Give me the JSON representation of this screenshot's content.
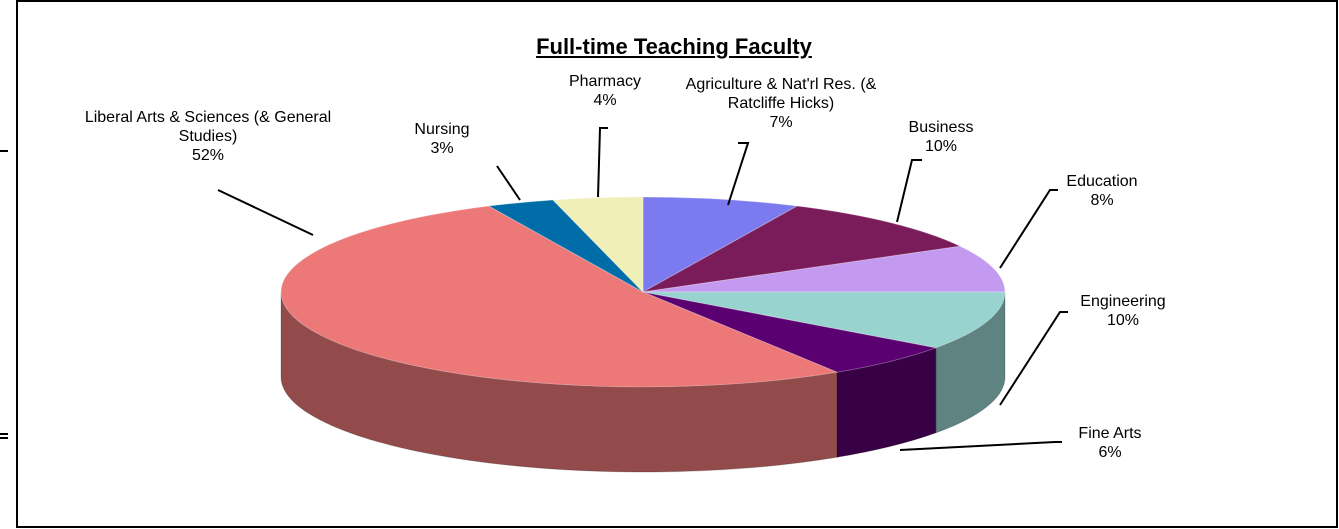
{
  "chart_data": {
    "type": "pie",
    "title": "Full-time Teaching Faculty",
    "categories": [
      "Agriculture & Nat'rl Res. (& Ratcliffe Hicks)",
      "Business",
      "Education",
      "Engineering",
      "Fine Arts",
      "Liberal Arts & Sciences (& General Studies)",
      "Nursing",
      "Pharmacy"
    ],
    "values": [
      7,
      10,
      8,
      10,
      6,
      52,
      3,
      4
    ],
    "value_labels": [
      "7%",
      "10%",
      "8%",
      "10%",
      "6%",
      "52%",
      "3%",
      "4%"
    ],
    "colors": [
      "#7b7bef",
      "#7a1c5a",
      "#c39af0",
      "#99d3d0",
      "#5a0070",
      "#ed7878",
      "#006ca8",
      "#f0efb8"
    ]
  }
}
